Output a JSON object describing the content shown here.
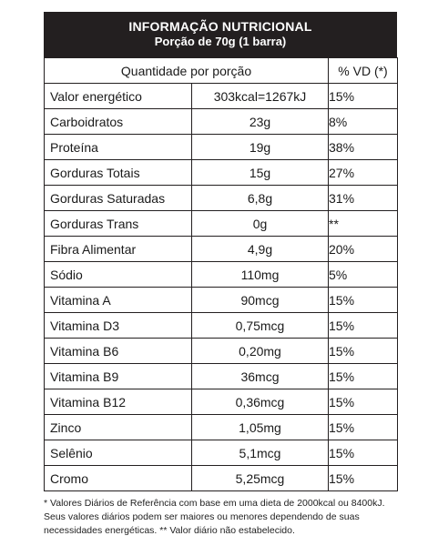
{
  "header": {
    "title": "INFORMAÇÃO NUTRICIONAL",
    "serving": "Porção de 70g (1 barra)"
  },
  "columns": {
    "quantity": "Quantidade por porção",
    "dv": "% VD (*)"
  },
  "rows": [
    {
      "name": "Valor energético",
      "qty": "303kcal=1267kJ",
      "dv": "15%"
    },
    {
      "name": "Carboidratos",
      "qty": "23g",
      "dv": "8%"
    },
    {
      "name": "Proteína",
      "qty": "19g",
      "dv": "38%"
    },
    {
      "name": "Gorduras Totais",
      "qty": "15g",
      "dv": "27%"
    },
    {
      "name": "Gorduras Saturadas",
      "qty": "6,8g",
      "dv": "31%"
    },
    {
      "name": "Gorduras Trans",
      "qty": "0g",
      "dv": "**"
    },
    {
      "name": "Fibra Alimentar",
      "qty": "4,9g",
      "dv": "20%"
    },
    {
      "name": "Sódio",
      "qty": "110mg",
      "dv": "5%"
    },
    {
      "name": "Vitamina A",
      "qty": "90mcg",
      "dv": "15%"
    },
    {
      "name": "Vitamina D3",
      "qty": "0,75mcg",
      "dv": "15%"
    },
    {
      "name": "Vitamina B6",
      "qty": "0,20mg",
      "dv": "15%"
    },
    {
      "name": "Vitamina B9",
      "qty": "36mcg",
      "dv": "15%"
    },
    {
      "name": "Vitamina B12",
      "qty": "0,36mcg",
      "dv": "15%"
    },
    {
      "name": "Zinco",
      "qty": "1,05mg",
      "dv": "15%"
    },
    {
      "name": "Selênio",
      "qty": "5,1mcg",
      "dv": "15%"
    },
    {
      "name": "Cromo",
      "qty": "5,25mcg",
      "dv": "15%"
    }
  ],
  "footnote": "* Valores Diários de Referência com base em uma dieta de 2000kcal ou 8400kJ. Seus valores diários podem ser maiores ou menores dependendo de suas necessidades energéticas. ** Valor diário não estabelecido."
}
